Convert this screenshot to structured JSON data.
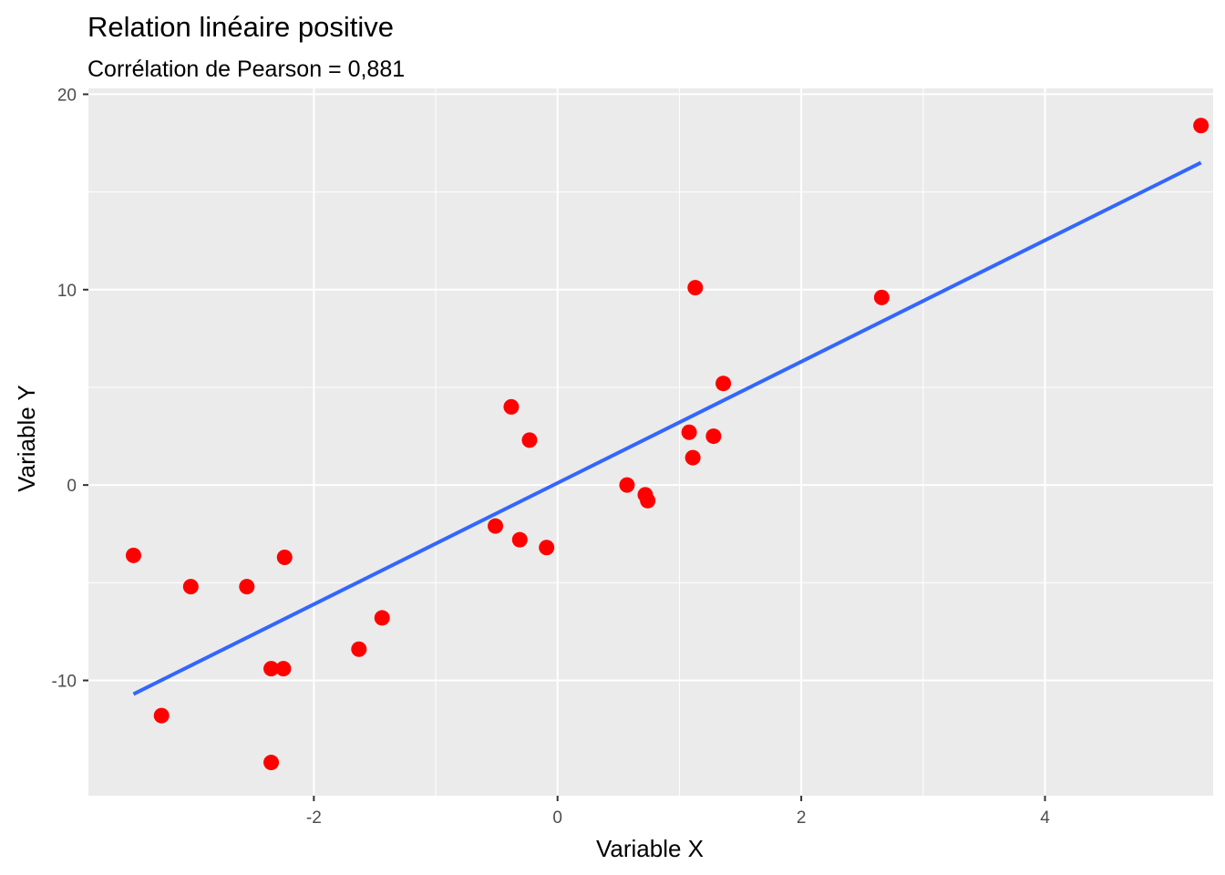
{
  "chart_data": {
    "type": "scatter",
    "title": "Relation linéaire positive",
    "subtitle": "Corrélation de Pearson = 0,881",
    "xlabel": "Variable X",
    "ylabel": "Variable Y",
    "xlim": [
      -3.85,
      5.38
    ],
    "ylim": [
      -15.9,
      20.3
    ],
    "x_ticks": [
      -2,
      0,
      2,
      4
    ],
    "x_tick_labels": [
      "-2",
      "0",
      "2",
      "4"
    ],
    "y_ticks": [
      -10,
      0,
      10,
      20
    ],
    "y_tick_labels": [
      "-10",
      "0",
      "10",
      "20"
    ],
    "grid": true,
    "legend": "none",
    "colors": {
      "panel": "#ebebeb",
      "grid": "#ffffff",
      "points": "#ff0000",
      "line": "#3366ff"
    },
    "points": [
      {
        "x": -3.48,
        "y": -3.6
      },
      {
        "x": -3.25,
        "y": -11.8
      },
      {
        "x": -3.01,
        "y": -5.2
      },
      {
        "x": -2.55,
        "y": -5.2
      },
      {
        "x": -2.35,
        "y": -9.4
      },
      {
        "x": -2.35,
        "y": -14.2
      },
      {
        "x": -2.25,
        "y": -9.4
      },
      {
        "x": -2.24,
        "y": -3.7
      },
      {
        "x": -1.63,
        "y": -8.4
      },
      {
        "x": -1.44,
        "y": -6.8
      },
      {
        "x": -0.51,
        "y": -2.1
      },
      {
        "x": -0.38,
        "y": 4.0
      },
      {
        "x": -0.31,
        "y": -2.8
      },
      {
        "x": -0.23,
        "y": 2.3
      },
      {
        "x": -0.09,
        "y": -3.2
      },
      {
        "x": 0.57,
        "y": 0.0
      },
      {
        "x": 0.72,
        "y": -0.5
      },
      {
        "x": 0.74,
        "y": -0.8
      },
      {
        "x": 1.08,
        "y": 2.7
      },
      {
        "x": 1.11,
        "y": 1.4
      },
      {
        "x": 1.13,
        "y": 10.1
      },
      {
        "x": 1.28,
        "y": 2.5
      },
      {
        "x": 1.36,
        "y": 5.2
      },
      {
        "x": 2.66,
        "y": 9.6
      },
      {
        "x": 5.28,
        "y": 18.4
      }
    ],
    "fit_line": {
      "x": [
        -3.48,
        5.28
      ],
      "y": [
        -10.7,
        16.5
      ]
    }
  }
}
